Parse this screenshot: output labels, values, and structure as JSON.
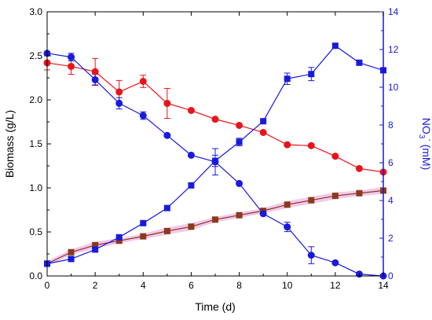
{
  "chart_data": {
    "type": "line",
    "xlabel": "Time (d)",
    "ylabel_left": "Biomass (g/L)",
    "ylabel_right": {
      "base": "NO",
      "sub": "3",
      "sup": "-",
      "unit": " (mM)"
    },
    "xlim": [
      0,
      14
    ],
    "ylim_left": [
      0,
      3.0
    ],
    "ylim_right": [
      0,
      14
    ],
    "x_ticks": [
      0,
      2,
      4,
      6,
      8,
      10,
      12,
      14
    ],
    "y_left_ticks": [
      "0.0",
      "0.5",
      "1.0",
      "1.5",
      "2.0",
      "2.5",
      "3.0"
    ],
    "y_right_ticks": [
      "0",
      "2",
      "4",
      "6",
      "8",
      "10",
      "12",
      "14"
    ],
    "grid": false,
    "colors": {
      "left_axis": "#000000",
      "right_axis": "#1a1acc",
      "red": "#e8141a",
      "blue": "#1a1add",
      "brown": "#8b3a1a",
      "brown_band": "#f2c8ec"
    },
    "series": [
      {
        "axis": "left",
        "marker": "circle",
        "color": "#e8141a",
        "x": [
          0,
          1,
          2,
          3,
          4,
          5,
          6,
          7,
          8,
          9,
          10,
          11,
          12,
          13,
          14
        ],
        "y": [
          2.42,
          2.38,
          2.32,
          2.09,
          2.21,
          1.96,
          1.88,
          1.78,
          1.71,
          1.63,
          1.49,
          1.48,
          1.36,
          1.22,
          1.18
        ],
        "err": [
          0.08,
          0.09,
          0.15,
          0.13,
          0.07,
          0.17,
          0,
          0,
          0,
          0,
          0,
          0,
          0,
          0,
          0
        ]
      },
      {
        "axis": "left",
        "marker": "square",
        "color": "#8b3a1a",
        "x": [
          0,
          1,
          2,
          3,
          4,
          5,
          6,
          7,
          8,
          9,
          10,
          11,
          12,
          13,
          14
        ],
        "y": [
          0.14,
          0.27,
          0.35,
          0.4,
          0.45,
          0.51,
          0.56,
          0.64,
          0.69,
          0.74,
          0.81,
          0.86,
          0.91,
          0.94,
          0.97
        ],
        "err": [
          0.03,
          0.03,
          0.04,
          0.03,
          0.03,
          0.04,
          0.04,
          0.03,
          0.03,
          0.03,
          0.04,
          0.04,
          0.04,
          0.03,
          0.04
        ]
      },
      {
        "axis": "right",
        "marker": "circle",
        "color": "#1a1add",
        "x": [
          0,
          1,
          2,
          3,
          4,
          5,
          6,
          7,
          8,
          9,
          10,
          11,
          12,
          13,
          14
        ],
        "y": [
          11.8,
          11.6,
          10.4,
          9.15,
          8.5,
          7.45,
          6.4,
          6.05,
          4.9,
          3.3,
          2.6,
          1.1,
          0.7,
          0.1,
          0.0
        ],
        "err": [
          0,
          0.2,
          0.3,
          0.3,
          0.2,
          0,
          0,
          0.7,
          0,
          0,
          0.25,
          0.45,
          0,
          0,
          0
        ]
      },
      {
        "axis": "right",
        "marker": "square",
        "color": "#1a1add",
        "x": [
          0,
          1,
          2,
          3,
          4,
          5,
          6,
          7,
          8,
          9,
          10,
          11,
          12,
          13,
          14
        ],
        "y": [
          0.65,
          0.9,
          1.4,
          2.05,
          2.8,
          3.6,
          4.8,
          6.1,
          7.1,
          8.2,
          10.45,
          10.7,
          12.2,
          11.3,
          10.9
        ],
        "err": [
          0,
          0.1,
          0.1,
          0,
          0,
          0,
          0,
          0.3,
          0.2,
          0,
          0.3,
          0.35,
          0,
          0,
          0
        ]
      }
    ]
  }
}
